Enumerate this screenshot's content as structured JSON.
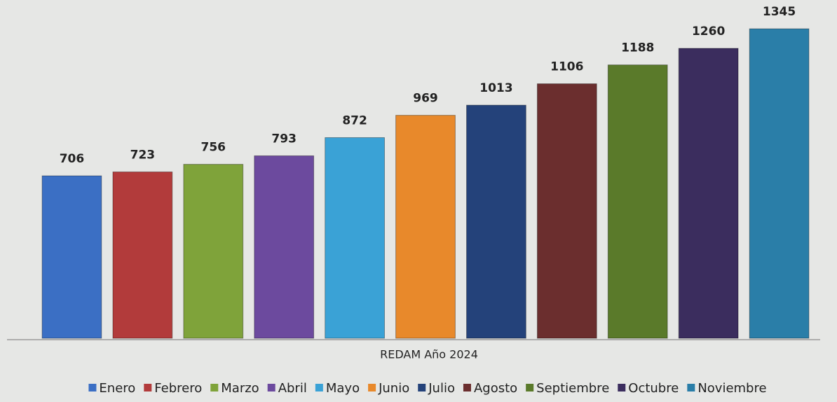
{
  "chart_data": {
    "type": "bar",
    "x_label": "REDAM Año 2024",
    "categories": [
      "Enero",
      "Febrero",
      "Marzo",
      "Abril",
      "Mayo",
      "Junio",
      "Julio",
      "Agosto",
      "Septiembre",
      "Octubre",
      "Noviembre"
    ],
    "values": [
      706,
      723,
      756,
      793,
      872,
      969,
      1013,
      1106,
      1188,
      1260,
      1345
    ],
    "colors": [
      "#3b6fc4",
      "#b23b3b",
      "#7fa33a",
      "#6c4a9e",
      "#3aa2d6",
      "#e8892b",
      "#24427a",
      "#6b2e2e",
      "#5a7a2a",
      "#3b2d5e",
      "#2a7ea8"
    ],
    "ylim": [
      0,
      1400
    ],
    "legend": "bottom"
  }
}
